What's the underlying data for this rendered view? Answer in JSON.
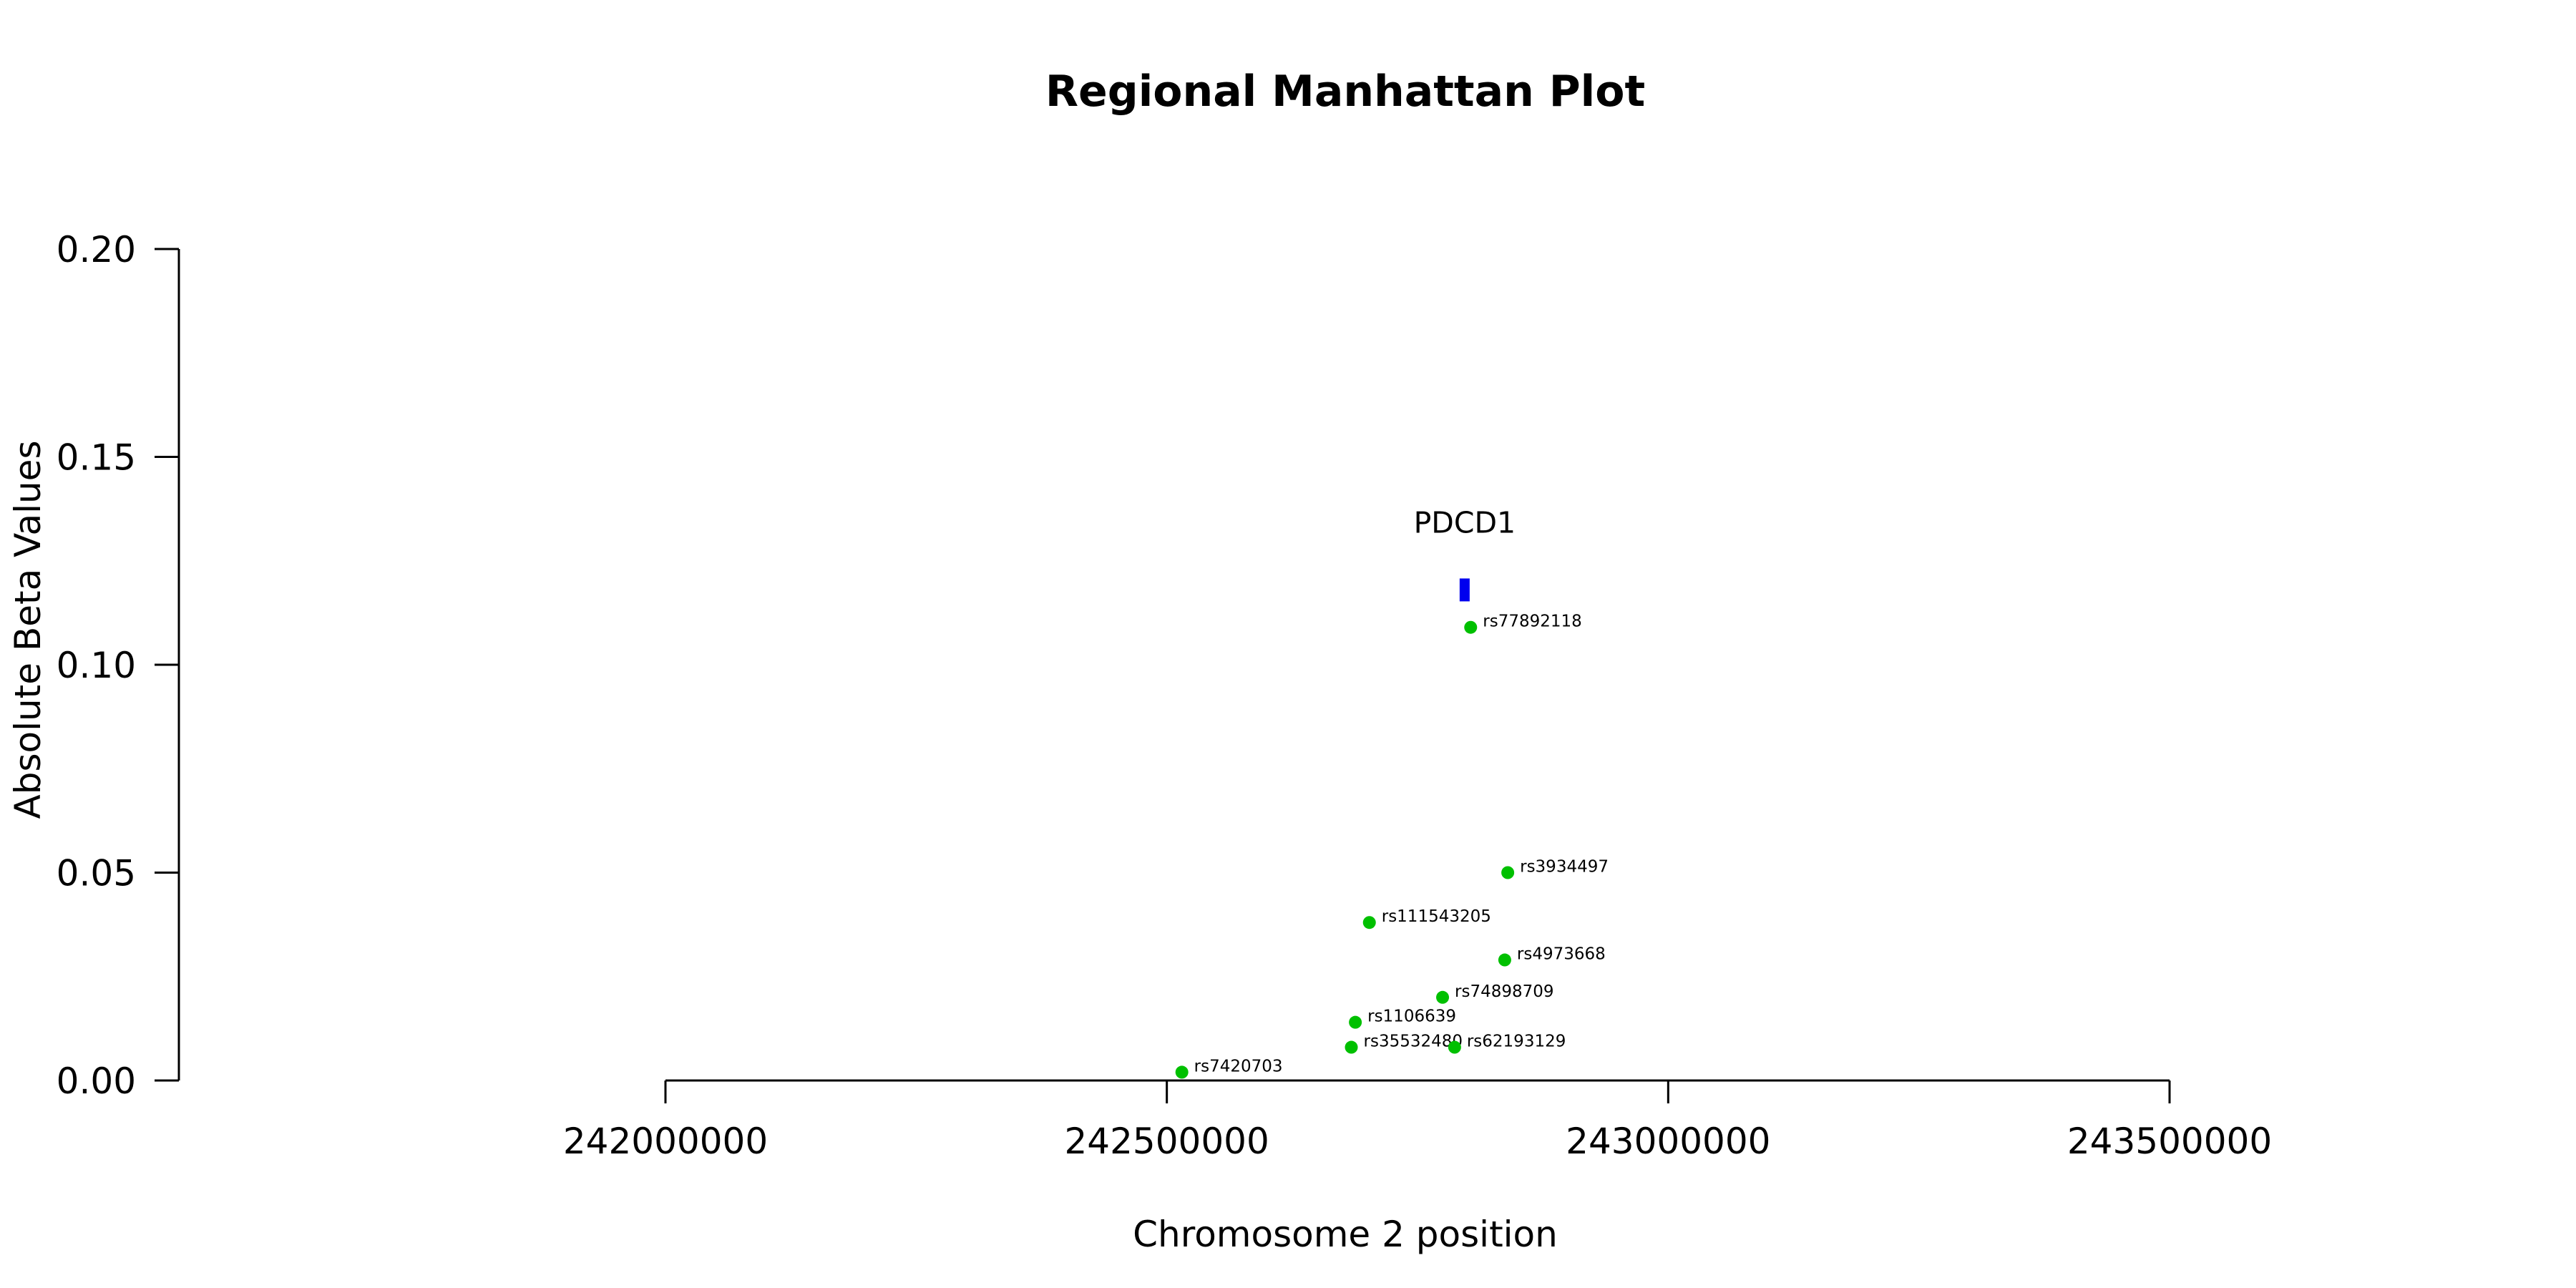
{
  "chart_data": {
    "type": "scatter",
    "title": "Regional Manhattan Plot",
    "xlabel": "Chromosome 2 position",
    "ylabel": "Absolute Beta Values",
    "xlim": [
      242000000,
      243500000
    ],
    "ylim": [
      0.0,
      0.2
    ],
    "x_ticks": [
      "242000000",
      "242500000",
      "243000000",
      "243500000"
    ],
    "y_ticks": [
      "0.00",
      "0.05",
      "0.10",
      "0.15",
      "0.20"
    ],
    "grid": false,
    "point_color": "#00c000",
    "gene_color": "#0000ee",
    "gene": {
      "name": "PDCD1",
      "start": 242792000,
      "end": 242802000,
      "y": 0.118
    },
    "points": [
      {
        "label": "rs77892118",
        "x": 242803000,
        "y": 0.109
      },
      {
        "label": "rs3934497",
        "x": 242840000,
        "y": 0.05
      },
      {
        "label": "rs111543205",
        "x": 242702000,
        "y": 0.038
      },
      {
        "label": "rs4973668",
        "x": 242837000,
        "y": 0.029
      },
      {
        "label": "rs74898709",
        "x": 242775000,
        "y": 0.02
      },
      {
        "label": "rs1106639",
        "x": 242688000,
        "y": 0.014
      },
      {
        "label": "rs35532480",
        "x": 242684000,
        "y": 0.008
      },
      {
        "label": "rs62193129",
        "x": 242787000,
        "y": 0.008
      },
      {
        "label": "rs7420703",
        "x": 242515000,
        "y": 0.002
      }
    ]
  }
}
